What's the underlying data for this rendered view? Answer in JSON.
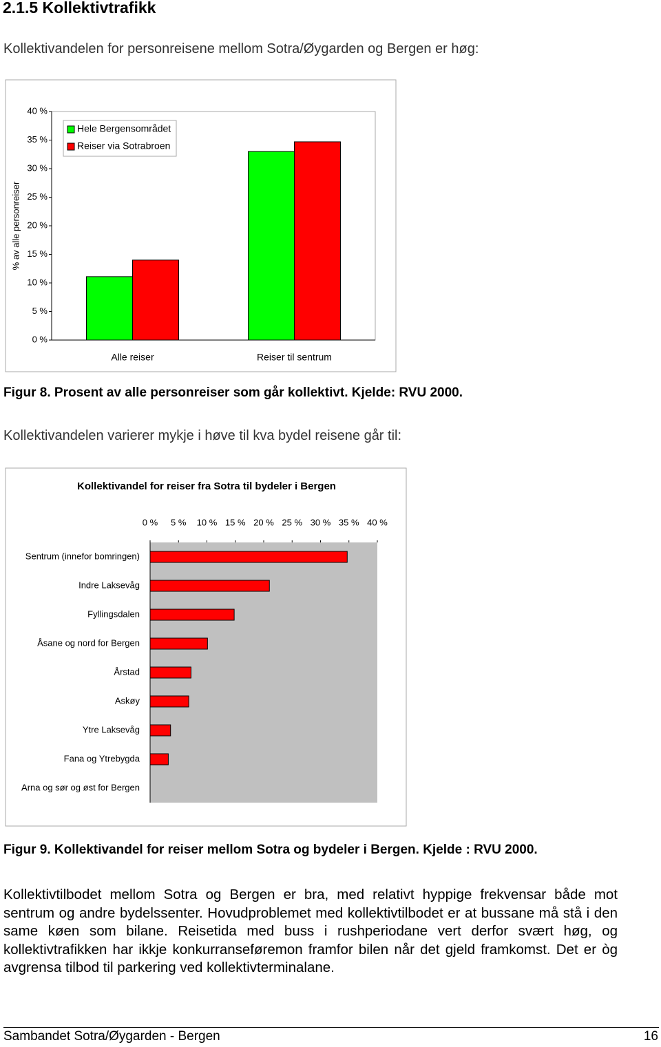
{
  "heading": "2.1.5 Kollektivtrafikk",
  "intro": "Kollektivandelen for personreisene mellom Sotra/Øygarden og Bergen er høg:",
  "chart_data": [
    {
      "type": "bar",
      "y_label": "% av alle personreiser",
      "categories": [
        "Alle reiser",
        "Reiser til sentrum"
      ],
      "series": [
        {
          "name": "Hele Bergensområdet",
          "color": "#00ff00",
          "values": [
            11.1,
            33.0
          ]
        },
        {
          "name": "Reiser via Sotrabroen",
          "color": "#ff0000",
          "values": [
            14.0,
            34.7
          ]
        }
      ],
      "ylim": [
        0,
        40
      ],
      "yticks": [
        {
          "value": 0,
          "label": "0 %"
        },
        {
          "value": 5,
          "label": "5 %"
        },
        {
          "value": 10,
          "label": "10 %"
        },
        {
          "value": 15,
          "label": "15 %"
        },
        {
          "value": 20,
          "label": "20 %"
        },
        {
          "value": 25,
          "label": "25 %"
        },
        {
          "value": 30,
          "label": "30 %"
        },
        {
          "value": 35,
          "label": "35 %"
        },
        {
          "value": 40,
          "label": "40 %"
        }
      ],
      "legend": "upper left"
    },
    {
      "type": "barh",
      "title": "Kollektivandel for reiser fra Sotra til bydeler i Bergen",
      "categories": [
        "Sentrum (innefor bomringen)",
        "Indre Laksevåg",
        "Fyllingsdalen",
        "Åsane og nord for Bergen",
        "Årstad",
        "Askøy",
        "Ytre Laksevåg",
        "Fana og Ytrebygda",
        "Arna og sør og øst for Bergen"
      ],
      "values": [
        34.7,
        21.0,
        14.8,
        10.1,
        7.2,
        6.8,
        3.6,
        3.2,
        0
      ],
      "color": "#ff0000",
      "xlim": [
        0,
        40
      ],
      "xticks": [
        {
          "value": 0,
          "label": "0 %"
        },
        {
          "value": 5,
          "label": "5 %"
        },
        {
          "value": 10,
          "label": "10 %"
        },
        {
          "value": 15,
          "label": "15 %"
        },
        {
          "value": 20,
          "label": "20 %"
        },
        {
          "value": 25,
          "label": "25 %"
        },
        {
          "value": 30,
          "label": "30 %"
        },
        {
          "value": 35,
          "label": "35 %"
        },
        {
          "value": 40,
          "label": "40 %"
        }
      ]
    }
  ],
  "captions": [
    "Figur 8. Prosent av alle personreiser som går kollektivt. Kjelde: RVU 2000.",
    "Figur 9. Kollektivandel for reiser mellom Sotra og bydeler i Bergen. Kjelde : RVU 2000."
  ],
  "text_between": "Kollektivandelen varierer mykje i høve til kva bydel reisene går til:",
  "paragraph": "Kollektivtilbodet mellom Sotra og Bergen er bra, med relativt hyppige frekvensar både mot sentrum og andre bydelssenter.  Hovudproblemet med kollektivtilbodet er at bussane må stå i den same køen som bilane.  Reisetida med buss i rushperiodane vert derfor svært høg, og kollektivtrafikken har ikkje konkurranseføremon framfor bilen når det gjeld framkomst.  Det er òg avgrensa tilbod til parkering ved kollektivterminalane.",
  "footer": {
    "left": "Sambandet Sotra/Øygarden - Bergen",
    "page": "16"
  }
}
